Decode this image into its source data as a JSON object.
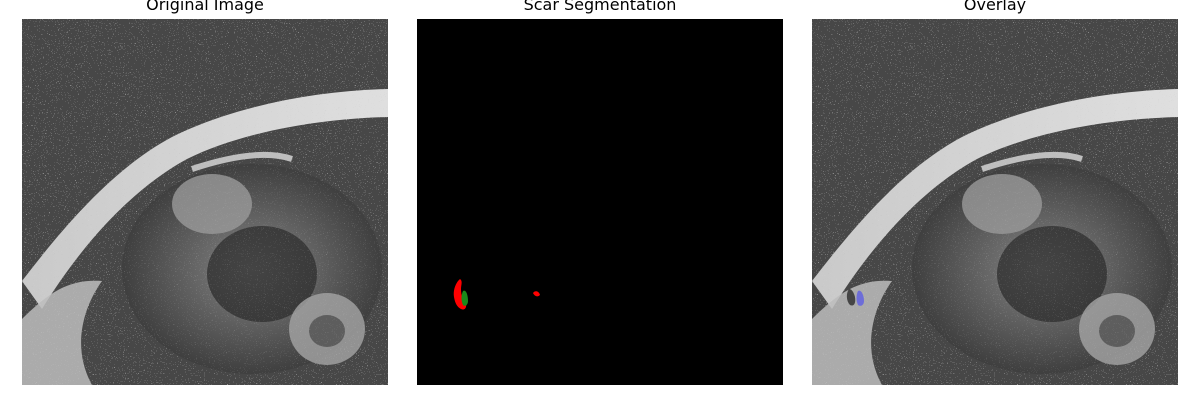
{
  "figure": {
    "panels": [
      {
        "title": "Original Image"
      },
      {
        "title": "Scar Segmentation"
      },
      {
        "title": "Overlay"
      }
    ]
  },
  "colors": {
    "background": "#ffffff",
    "segmentation_background": "#000000",
    "scar_red": "#ff0000",
    "scar_green": "#1a8a1a",
    "overlay_blue": "#6666dd"
  }
}
